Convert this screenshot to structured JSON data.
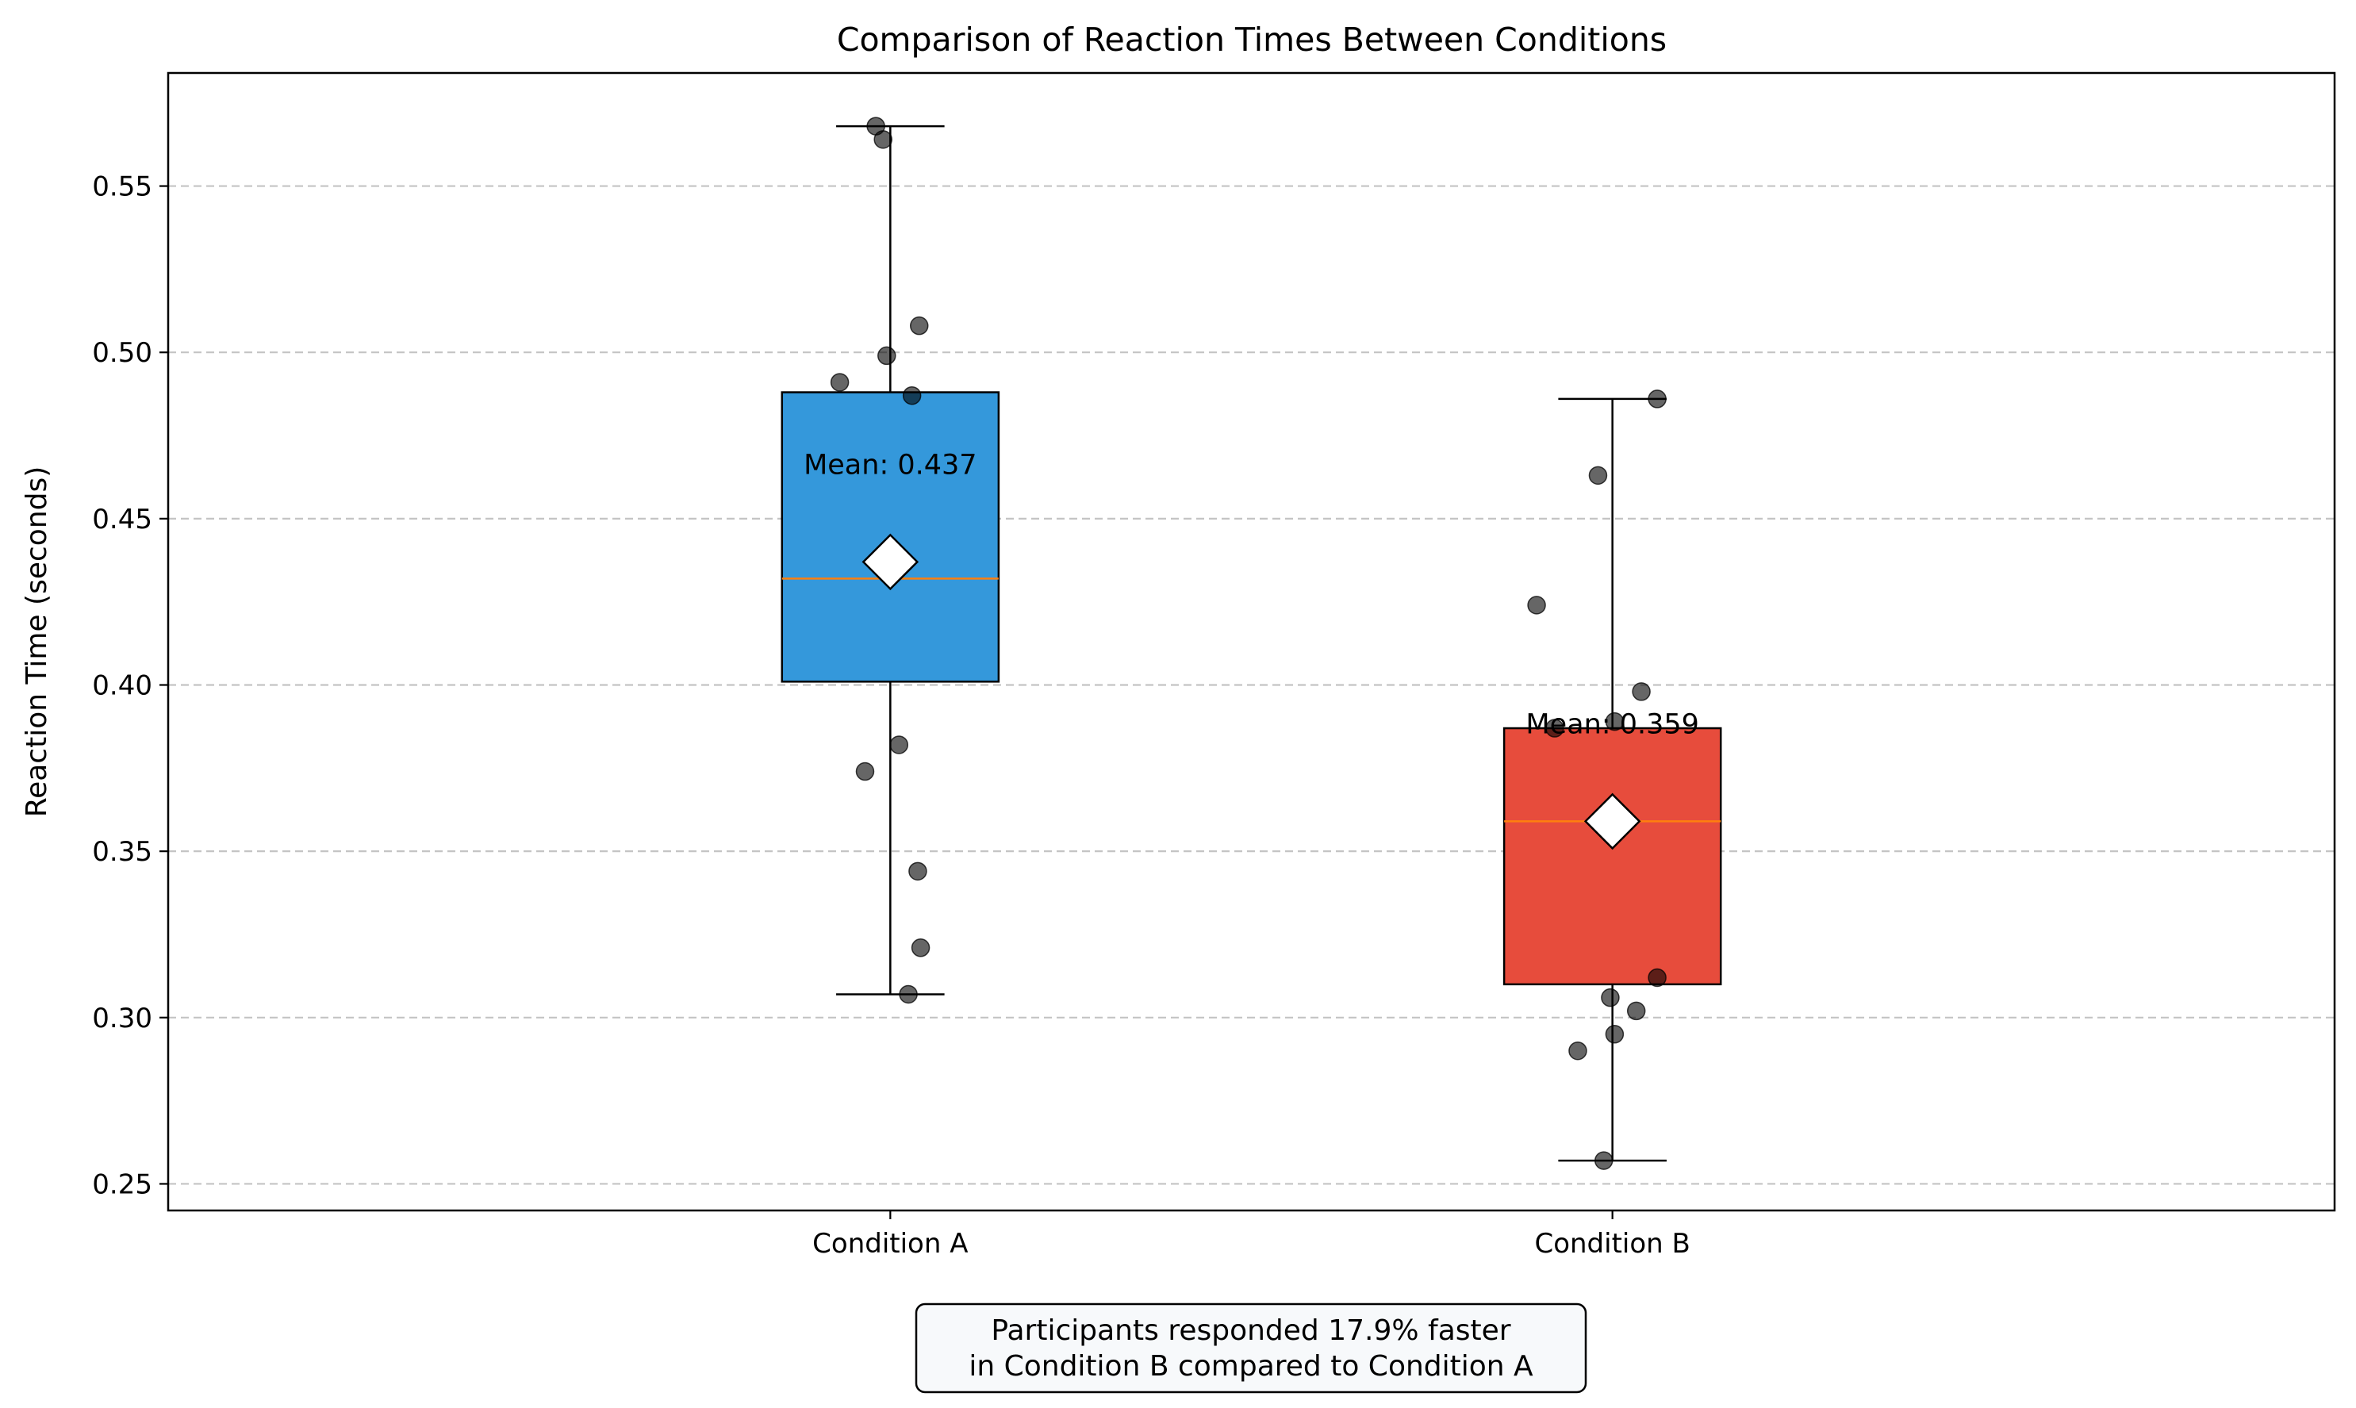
{
  "chart_data": {
    "type": "box",
    "title": "Comparison of Reaction Times Between Conditions",
    "xlabel": "",
    "ylabel": "Reaction Time (seconds)",
    "ylim": [
      0.242,
      0.584
    ],
    "yticks": [
      0.25,
      0.3,
      0.35,
      0.4,
      0.45,
      0.5,
      0.55
    ],
    "ytick_labels": [
      "0.25",
      "0.30",
      "0.35",
      "0.40",
      "0.45",
      "0.50",
      "0.55"
    ],
    "grid": "y-dashed",
    "categories": [
      "Condition A",
      "Condition B"
    ],
    "boxes": [
      {
        "name": "Condition A",
        "color": "#3498db",
        "whisker_low": 0.307,
        "q1": 0.401,
        "median": 0.432,
        "q3": 0.488,
        "whisker_high": 0.568,
        "mean": 0.437,
        "mean_label": "Mean: 0.437",
        "points": [
          {
            "jitter": -0.07,
            "y": 0.491
          },
          {
            "jitter": -0.02,
            "y": 0.568
          },
          {
            "jitter": -0.01,
            "y": 0.564
          },
          {
            "jitter": -0.005,
            "y": 0.499
          },
          {
            "jitter": 0.04,
            "y": 0.508
          },
          {
            "jitter": 0.03,
            "y": 0.487
          },
          {
            "jitter": -0.035,
            "y": 0.374
          },
          {
            "jitter": 0.012,
            "y": 0.382
          },
          {
            "jitter": 0.038,
            "y": 0.344
          },
          {
            "jitter": 0.042,
            "y": 0.321
          },
          {
            "jitter": 0.025,
            "y": 0.307
          }
        ]
      },
      {
        "name": "Condition B",
        "color": "#e74c3c",
        "whisker_low": 0.257,
        "q1": 0.31,
        "median": 0.359,
        "q3": 0.387,
        "whisker_high": 0.486,
        "mean": 0.359,
        "mean_label": "Mean: 0.359",
        "points": [
          {
            "jitter": 0.062,
            "y": 0.486
          },
          {
            "jitter": -0.02,
            "y": 0.463
          },
          {
            "jitter": -0.105,
            "y": 0.424
          },
          {
            "jitter": 0.04,
            "y": 0.398
          },
          {
            "jitter": -0.08,
            "y": 0.387
          },
          {
            "jitter": 0.003,
            "y": 0.389
          },
          {
            "jitter": 0.062,
            "y": 0.312
          },
          {
            "jitter": -0.003,
            "y": 0.306
          },
          {
            "jitter": 0.033,
            "y": 0.302
          },
          {
            "jitter": 0.003,
            "y": 0.295
          },
          {
            "jitter": -0.048,
            "y": 0.29
          },
          {
            "jitter": -0.012,
            "y": 0.257
          }
        ]
      }
    ],
    "annotation": {
      "line1": "Participants responded 17.9% faster",
      "line2": "in Condition B compared to Condition A"
    }
  }
}
